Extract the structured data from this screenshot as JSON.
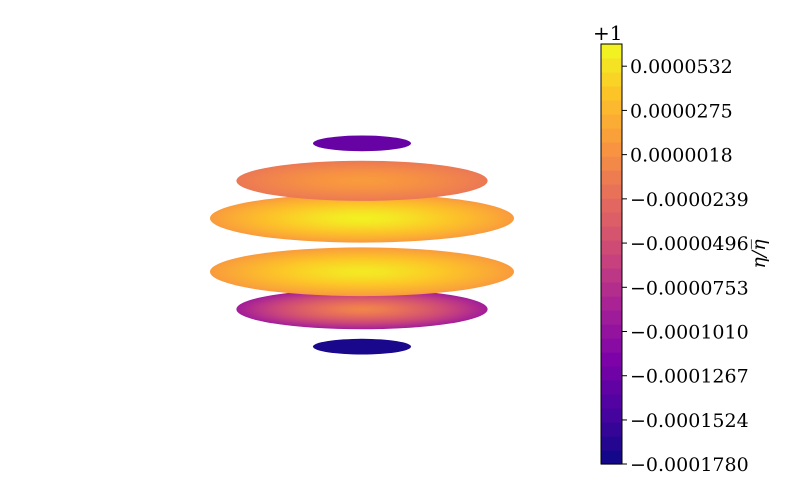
{
  "chart_data": {
    "type": "heatmap",
    "title": "",
    "colormap": "plasma",
    "colorbar": {
      "label": "η/η̅",
      "offset_text": "+1",
      "vmin": -0.000178,
      "vmax": 6.61e-05,
      "ticks": [
        {
          "value": 5.32e-05,
          "label": "0.0000532"
        },
        {
          "value": 2.75e-05,
          "label": "0.0000275"
        },
        {
          "value": 1.8e-06,
          "label": "0.0000018"
        },
        {
          "value": -2.39e-05,
          "label": "−0.0000239"
        },
        {
          "value": -4.96e-05,
          "label": "−0.0000496"
        },
        {
          "value": -7.53e-05,
          "label": "−0.0000753"
        },
        {
          "value": -0.000101,
          "label": "−0.0001010"
        },
        {
          "value": -0.0001267,
          "label": "−0.0001267"
        },
        {
          "value": -0.0001524,
          "label": "−0.0001524"
        },
        {
          "value": -0.000178,
          "label": "−0.0001780"
        }
      ]
    },
    "slices": [
      {
        "z": 0.95,
        "center_value": -0.00013,
        "edge_value": -0.00013
      },
      {
        "z": 0.6,
        "center_value": 1e-05,
        "edge_value": -1.5e-05
      },
      {
        "z": 0.25,
        "center_value": 6.2e-05,
        "edge_value": 1e-05
      },
      {
        "z": -0.25,
        "center_value": 5.8e-05,
        "edge_value": 1e-05
      },
      {
        "z": -0.6,
        "center_value": -5e-06,
        "edge_value": -9e-05
      },
      {
        "z": -0.95,
        "center_value": -0.000172,
        "edge_value": -0.000172
      }
    ]
  }
}
